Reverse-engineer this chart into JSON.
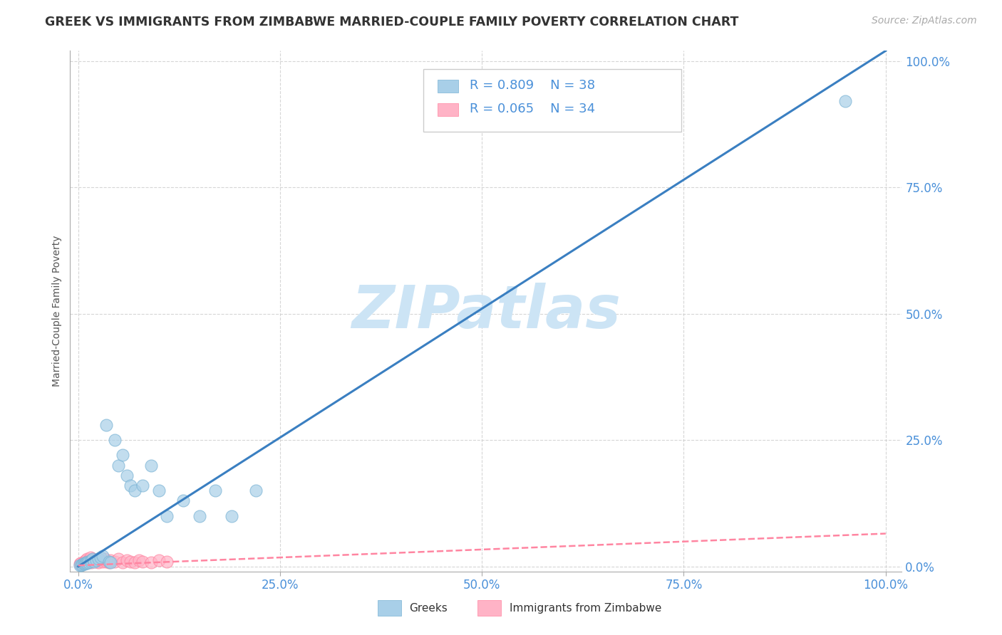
{
  "title": "GREEK VS IMMIGRANTS FROM ZIMBABWE MARRIED-COUPLE FAMILY POVERTY CORRELATION CHART",
  "source_text": "Source: ZipAtlas.com",
  "ylabel": "Married-Couple Family Poverty",
  "xlabel": "",
  "xlim": [
    -0.01,
    1.02
  ],
  "ylim": [
    -0.01,
    1.02
  ],
  "xticks": [
    0.0,
    0.25,
    0.5,
    0.75,
    1.0
  ],
  "yticks": [
    0.0,
    0.25,
    0.5,
    0.75,
    1.0
  ],
  "xticklabels": [
    "0.0%",
    "25.0%",
    "50.0%",
    "75.0%",
    "100.0%"
  ],
  "yticklabels": [
    "0.0%",
    "25.0%",
    "50.0%",
    "75.0%",
    "100.0%"
  ],
  "greek_color": "#a8cfe8",
  "greek_edge_color": "#7ab3d4",
  "zimbabwe_color": "#ffb3c6",
  "zimbabwe_edge_color": "#ff85a1",
  "trend_greek_color": "#3a7fc1",
  "trend_zimbabwe_color": "#ff85a1",
  "tick_color": "#4a90d9",
  "R_greek": 0.809,
  "N_greek": 38,
  "R_zimbabwe": 0.065,
  "N_zimbabwe": 34,
  "watermark_text": "ZIPatlas",
  "watermark_color": "#cce4f5",
  "grid_color": "#cccccc",
  "background_color": "#ffffff",
  "greek_points_x": [
    0.002,
    0.004,
    0.005,
    0.006,
    0.007,
    0.008,
    0.009,
    0.01,
    0.011,
    0.012,
    0.013,
    0.015,
    0.016,
    0.018,
    0.02,
    0.022,
    0.025,
    0.028,
    0.03,
    0.035,
    0.038,
    0.04,
    0.045,
    0.05,
    0.055,
    0.06,
    0.065,
    0.07,
    0.08,
    0.09,
    0.1,
    0.11,
    0.13,
    0.15,
    0.17,
    0.19,
    0.22,
    0.95
  ],
  "greek_points_y": [
    0.002,
    0.003,
    0.004,
    0.005,
    0.006,
    0.005,
    0.007,
    0.008,
    0.006,
    0.01,
    0.008,
    0.01,
    0.012,
    0.015,
    0.01,
    0.012,
    0.015,
    0.018,
    0.02,
    0.28,
    0.01,
    0.008,
    0.25,
    0.2,
    0.22,
    0.18,
    0.16,
    0.15,
    0.16,
    0.2,
    0.15,
    0.1,
    0.13,
    0.1,
    0.15,
    0.1,
    0.15,
    0.92
  ],
  "zimbabwe_points_x": [
    0.002,
    0.003,
    0.005,
    0.006,
    0.007,
    0.008,
    0.009,
    0.01,
    0.011,
    0.012,
    0.013,
    0.015,
    0.016,
    0.018,
    0.02,
    0.022,
    0.025,
    0.028,
    0.03,
    0.033,
    0.035,
    0.038,
    0.04,
    0.045,
    0.05,
    0.055,
    0.06,
    0.065,
    0.07,
    0.075,
    0.08,
    0.09,
    0.1,
    0.11
  ],
  "zimbabwe_points_y": [
    0.005,
    0.006,
    0.004,
    0.008,
    0.01,
    0.006,
    0.012,
    0.008,
    0.015,
    0.01,
    0.012,
    0.018,
    0.008,
    0.015,
    0.012,
    0.01,
    0.008,
    0.012,
    0.01,
    0.015,
    0.01,
    0.008,
    0.012,
    0.01,
    0.015,
    0.008,
    0.012,
    0.01,
    0.008,
    0.012,
    0.01,
    0.008,
    0.012,
    0.01
  ],
  "title_fontsize": 12.5,
  "axis_label_fontsize": 10,
  "tick_fontsize": 12,
  "legend_fontsize": 13,
  "source_fontsize": 10,
  "watermark_fontsize": 60
}
